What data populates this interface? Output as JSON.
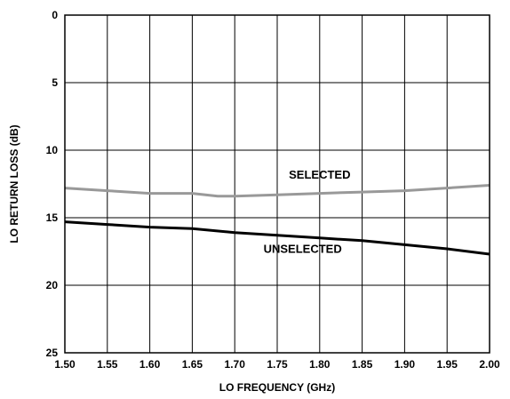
{
  "chart_data": {
    "type": "line",
    "xlabel": "LO FREQUENCY (GHz)",
    "ylabel": "LO RETURN LOSS (dB)",
    "xlim": [
      1.5,
      2.0
    ],
    "ylim": [
      0,
      25
    ],
    "y_inverted": true,
    "grid": true,
    "x_ticks": [
      "1.50",
      "1.55",
      "1.60",
      "1.65",
      "1.70",
      "1.75",
      "1.80",
      "1.85",
      "1.90",
      "1.95",
      "2.00"
    ],
    "y_ticks": [
      "0",
      "5",
      "10",
      "15",
      "20",
      "25"
    ],
    "series": [
      {
        "name": "SELECTED",
        "color": "#999999",
        "x": [
          1.5,
          1.55,
          1.6,
          1.65,
          1.68,
          1.7,
          1.75,
          1.8,
          1.85,
          1.9,
          1.95,
          2.0
        ],
        "y": [
          12.8,
          13.0,
          13.2,
          13.2,
          13.4,
          13.4,
          13.3,
          13.2,
          13.1,
          13.0,
          12.8,
          12.6
        ]
      },
      {
        "name": "UNSELECTED",
        "color": "#000000",
        "x": [
          1.5,
          1.55,
          1.6,
          1.65,
          1.7,
          1.75,
          1.8,
          1.85,
          1.9,
          1.95,
          2.0
        ],
        "y": [
          15.3,
          15.5,
          15.7,
          15.8,
          16.1,
          16.3,
          16.5,
          16.7,
          17.0,
          17.3,
          17.7
        ]
      }
    ],
    "annotations": [
      {
        "text": "SELECTED",
        "x": 1.8,
        "y": 12.1
      },
      {
        "text": "UNSELECTED",
        "x": 1.78,
        "y": 17.6
      }
    ]
  }
}
